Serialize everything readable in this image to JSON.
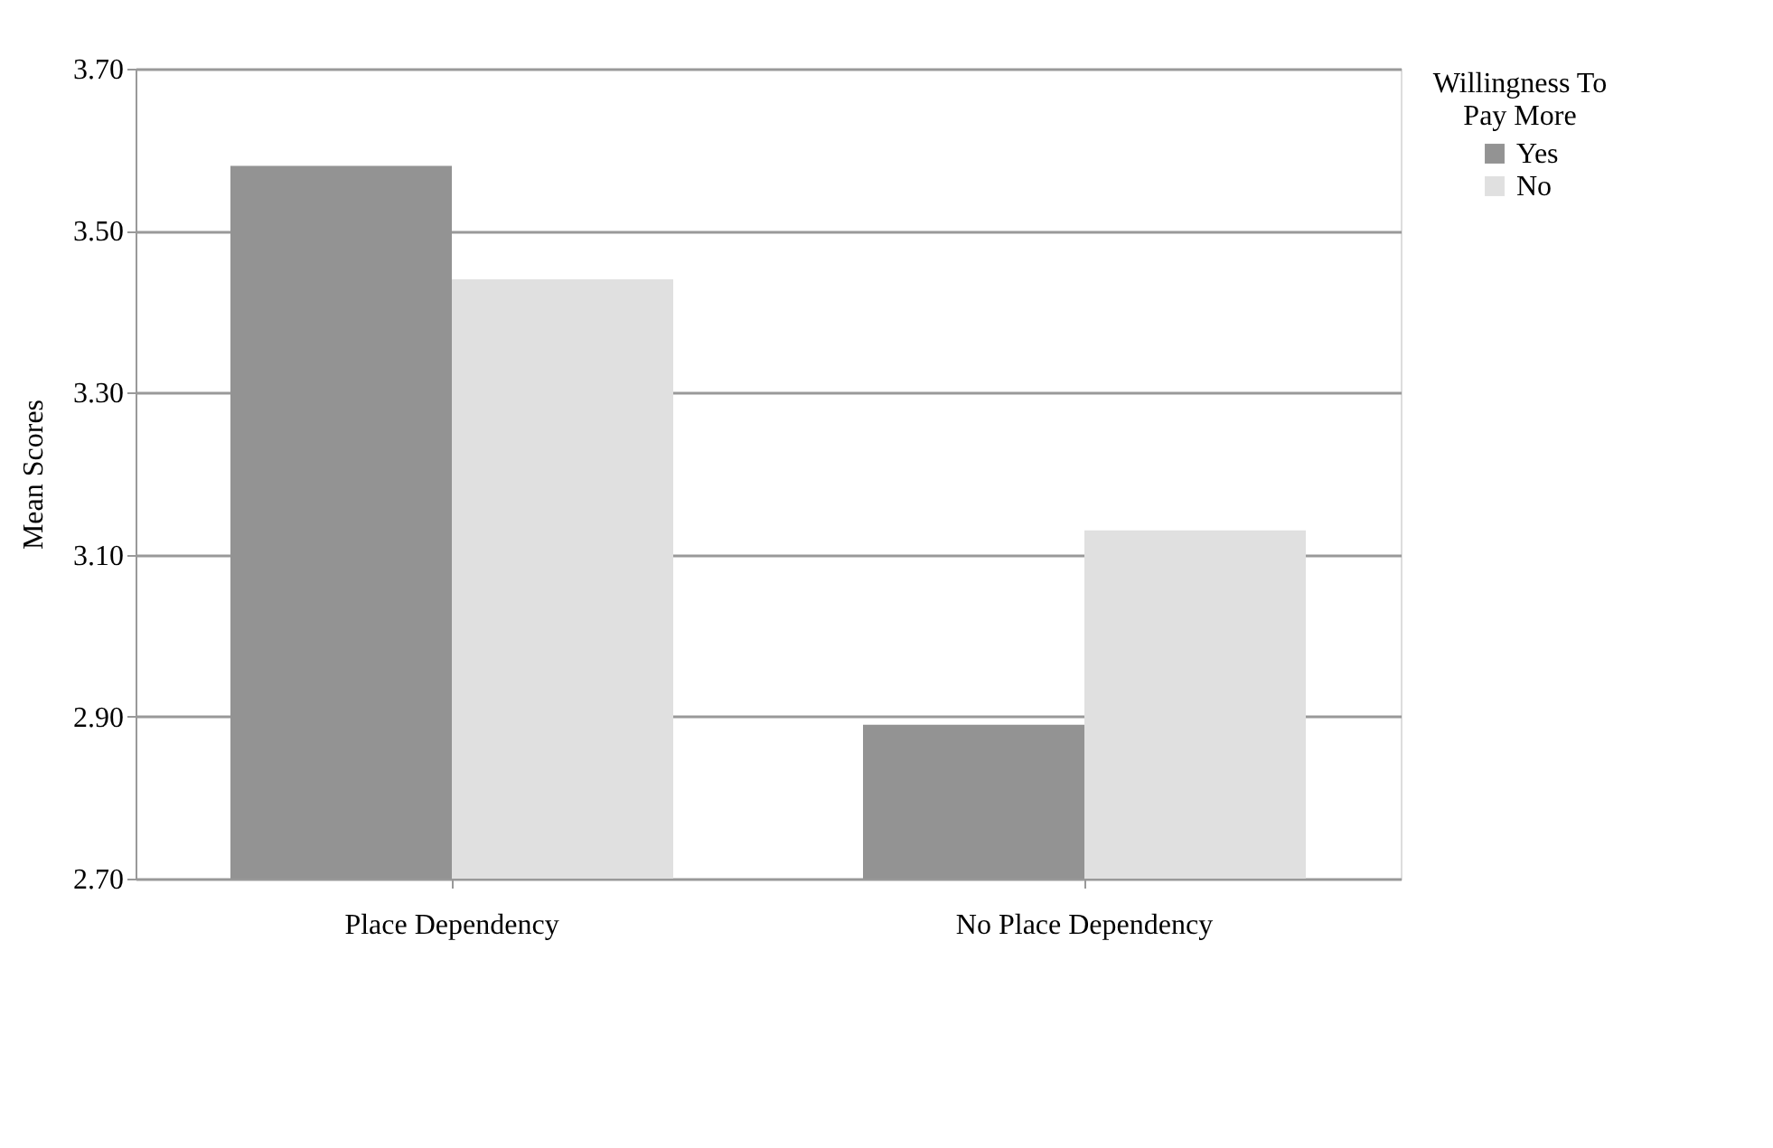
{
  "chart_data": {
    "type": "bar",
    "ylabel": "Mean Scores",
    "legend_title": "Willingness To Pay More",
    "categories": [
      "Place Dependency",
      "No Place Dependency"
    ],
    "series": [
      {
        "name": "Yes",
        "color": "#939393",
        "values": [
          3.58,
          2.89
        ]
      },
      {
        "name": "No",
        "color": "#e0e0e0",
        "values": [
          3.44,
          3.13
        ]
      }
    ],
    "ylim": [
      2.7,
      3.7
    ],
    "yticks": [
      {
        "value": 2.7,
        "label": "2.70"
      },
      {
        "value": 2.9,
        "label": "2.90"
      },
      {
        "value": 3.1,
        "label": "3.10"
      },
      {
        "value": 3.3,
        "label": "3.30"
      },
      {
        "value": 3.5,
        "label": "3.50"
      },
      {
        "value": 3.7,
        "label": "3.70"
      }
    ],
    "grid": "y",
    "legend": "right"
  }
}
